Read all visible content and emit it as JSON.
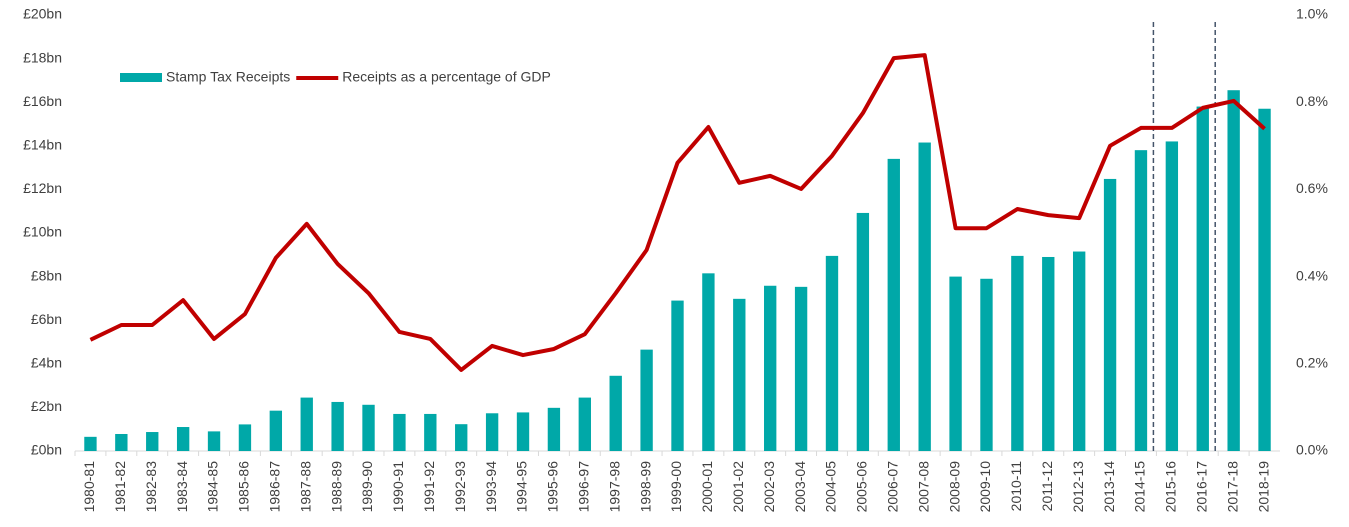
{
  "chart_data": {
    "type": "bar_line",
    "categories": [
      "1980-81",
      "1981-82",
      "1982-83",
      "1983-84",
      "1984-85",
      "1985-86",
      "1986-87",
      "1987-88",
      "1988-89",
      "1989-90",
      "1990-91",
      "1991-92",
      "1992-93",
      "1993-94",
      "1994-95",
      "1995-96",
      "1996-97",
      "1997-98",
      "1998-99",
      "1999-00",
      "2000-01",
      "2001-02",
      "2002-03",
      "2003-04",
      "2004-05",
      "2005-06",
      "2006-07",
      "2007-08",
      "2008-09",
      "2009-10",
      "2010-11",
      "2011-12",
      "2012-13",
      "2013-14",
      "2014-15",
      "2015-16",
      "2016-17",
      "2017-18",
      "2018-19"
    ],
    "series": [
      {
        "name": "Stamp Tax Receipts",
        "color": "#00a8a8",
        "kind": "bar",
        "values": [
          0.65,
          0.78,
          0.87,
          1.1,
          0.9,
          1.22,
          1.85,
          2.45,
          2.25,
          2.12,
          1.7,
          1.7,
          1.23,
          1.73,
          1.77,
          1.98,
          2.45,
          3.45,
          4.65,
          6.9,
          8.15,
          6.98,
          7.58,
          7.53,
          8.95,
          10.92,
          13.4,
          14.15,
          8.0,
          7.9,
          8.95,
          8.9,
          9.15,
          12.48,
          13.8,
          14.2,
          15.8,
          16.55,
          15.7
        ]
      },
      {
        "name": "Receipts as a percentage of GDP",
        "color": "#c00000",
        "kind": "line",
        "axis": "y2",
        "values": [
          0.255,
          0.289,
          0.289,
          0.346,
          0.257,
          0.314,
          0.443,
          0.521,
          0.429,
          0.362,
          0.273,
          0.257,
          0.186,
          0.241,
          0.22,
          0.234,
          0.268,
          0.362,
          0.461,
          0.661,
          0.743,
          0.615,
          0.631,
          0.601,
          0.677,
          0.775,
          0.901,
          0.908,
          0.511,
          0.511,
          0.555,
          0.541,
          0.534,
          0.7,
          0.741,
          0.741,
          0.787,
          0.803,
          0.739
        ]
      }
    ],
    "ylim": [
      0,
      20
    ],
    "yticks": [
      {
        "value": 0,
        "label": "£0bn"
      },
      {
        "value": 2,
        "label": "£2bn"
      },
      {
        "value": 4,
        "label": "£4bn"
      },
      {
        "value": 6,
        "label": "£6bn"
      },
      {
        "value": 8,
        "label": "£8bn"
      },
      {
        "value": 10,
        "label": "£10bn"
      },
      {
        "value": 12,
        "label": "£12bn"
      },
      {
        "value": 14,
        "label": "£14bn"
      },
      {
        "value": 16,
        "label": "£16bn"
      },
      {
        "value": 18,
        "label": "£18bn"
      },
      {
        "value": 20,
        "label": "£20bn"
      }
    ],
    "y2lim": [
      0,
      1.0
    ],
    "y2ticks": [
      {
        "value": 0,
        "label": "0.0%"
      },
      {
        "value": 0.2,
        "label": "0.2%"
      },
      {
        "value": 0.4,
        "label": "0.4%"
      },
      {
        "value": 0.6,
        "label": "0.6%"
      },
      {
        "value": 0.8,
        "label": "0.8%"
      },
      {
        "value": 1.0,
        "label": "1.0%"
      }
    ],
    "legend": "upper left"
  }
}
